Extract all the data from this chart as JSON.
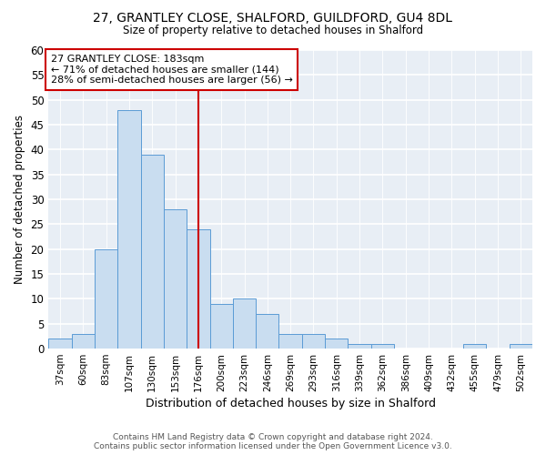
{
  "title_line1": "27, GRANTLEY CLOSE, SHALFORD, GUILDFORD, GU4 8DL",
  "title_line2": "Size of property relative to detached houses in Shalford",
  "xlabel": "Distribution of detached houses by size in Shalford",
  "ylabel": "Number of detached properties",
  "categories": [
    "37sqm",
    "60sqm",
    "83sqm",
    "107sqm",
    "130sqm",
    "153sqm",
    "176sqm",
    "200sqm",
    "223sqm",
    "246sqm",
    "269sqm",
    "293sqm",
    "316sqm",
    "339sqm",
    "362sqm",
    "386sqm",
    "409sqm",
    "432sqm",
    "455sqm",
    "479sqm",
    "502sqm"
  ],
  "values": [
    2,
    3,
    20,
    48,
    39,
    28,
    24,
    9,
    10,
    7,
    3,
    3,
    2,
    1,
    1,
    0,
    0,
    0,
    1,
    0,
    1
  ],
  "bar_color": "#c9ddf0",
  "bar_edge_color": "#5b9bd5",
  "ylim": [
    0,
    60
  ],
  "yticks": [
    0,
    5,
    10,
    15,
    20,
    25,
    30,
    35,
    40,
    45,
    50,
    55,
    60
  ],
  "annotation_line1": "27 GRANTLEY CLOSE: 183sqm",
  "annotation_line2": "← 71% of detached houses are smaller (144)",
  "annotation_line3": "28% of semi-detached houses are larger (56) →",
  "vline_x_index": 6,
  "annotation_box_facecolor": "#ffffff",
  "annotation_box_edgecolor": "#cc0000",
  "vline_color": "#cc0000",
  "footer_line1": "Contains HM Land Registry data © Crown copyright and database right 2024.",
  "footer_line2": "Contains public sector information licensed under the Open Government Licence v3.0.",
  "fig_bg_color": "#ffffff",
  "plot_bg_color": "#e8eef5"
}
